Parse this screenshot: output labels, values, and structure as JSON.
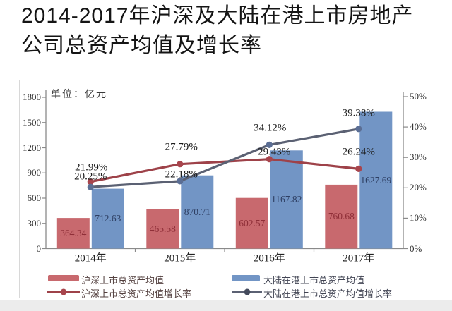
{
  "title": {
    "line1": "2014-2017年沪深及大陆在港上市房地产",
    "line2": "公司总资产均值及增长率"
  },
  "legend": {
    "bar1": "沪深上市总资产均值",
    "bar2": "大陆在港上市总资产均值",
    "line1": "沪深上市总资产均值增长率",
    "line2": "大陆在港上市总资产均值增长率"
  },
  "chart_data": {
    "type": "bar+line",
    "unit_label": "单位：亿元",
    "categories": [
      "2014年",
      "2015年",
      "2016年",
      "2017年"
    ],
    "bar_series": [
      {
        "name": "沪深上市总资产均值",
        "color": "#c8696e",
        "label_color_class": "val-red",
        "values": [
          364.34,
          465.58,
          602.57,
          760.68
        ],
        "value_labels": [
          "364.34",
          "465.58",
          "602.57",
          "760.68"
        ]
      },
      {
        "name": "大陆在港上市总资产均值",
        "color": "#7295c5",
        "label_color_class": "val-blue",
        "values": [
          712.63,
          870.71,
          1167.82,
          1627.69
        ],
        "value_labels": [
          "712.63",
          "870.71",
          "1167.82",
          "1627.69"
        ]
      }
    ],
    "line_series": [
      {
        "name": "沪深上市总资产均值增长率",
        "color": "#9e4249",
        "marker_color": "#a8454d",
        "values": [
          21.99,
          27.79,
          29.43,
          26.24
        ],
        "point_labels": [
          "21.99%",
          "27.79%",
          "29.43%",
          "26.24%"
        ]
      },
      {
        "name": "大陆在港上市总资产均值增长率",
        "color": "#5b6173",
        "marker_color": "#5b6e94",
        "values": [
          20.25,
          22.18,
          34.12,
          39.38
        ],
        "point_labels": [
          "20.25%",
          "22.18%",
          "34.12%",
          "39.38%"
        ]
      }
    ],
    "left_axis": {
      "min": 0,
      "max": 1800,
      "step": 300,
      "ticks": [
        "0",
        "300",
        "600",
        "900",
        "1200",
        "1500",
        "1800"
      ]
    },
    "right_axis": {
      "min": 0,
      "max": 50,
      "step": 10,
      "ticks": [
        "0%",
        "10%",
        "20%",
        "30%",
        "40%",
        "50%"
      ]
    },
    "grid": false,
    "legend_position": "bottom"
  }
}
